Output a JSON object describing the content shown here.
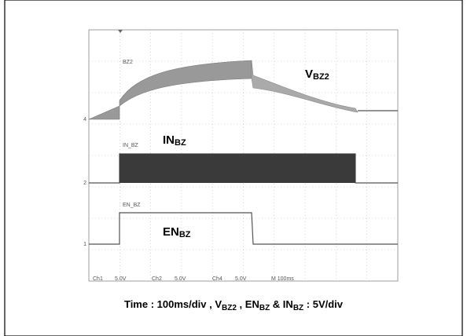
{
  "scope": {
    "trace_labels": [
      "BZ2",
      "IN_BZ",
      "EN_BZ"
    ],
    "channel_markers": [
      "4",
      "2",
      "1"
    ],
    "signals": [
      {
        "main": "V",
        "sub": "BZ2"
      },
      {
        "main": "IN",
        "sub": "BZ"
      },
      {
        "main": "EN",
        "sub": "BZ"
      }
    ],
    "status": [
      "Ch1",
      "5.0V",
      "Ch2",
      "5.0V",
      "Ch4",
      "5.0V",
      "M 100ms"
    ]
  },
  "caption": [
    {
      "text": "Time : 100ms/div , V"
    },
    {
      "text": "BZ2",
      "sub": true
    },
    {
      "text": " , EN"
    },
    {
      "text": "BZ",
      "sub": true
    },
    {
      "text": " & IN"
    },
    {
      "text": "BZ",
      "sub": true
    },
    {
      "text": " : 5V/div"
    }
  ]
}
